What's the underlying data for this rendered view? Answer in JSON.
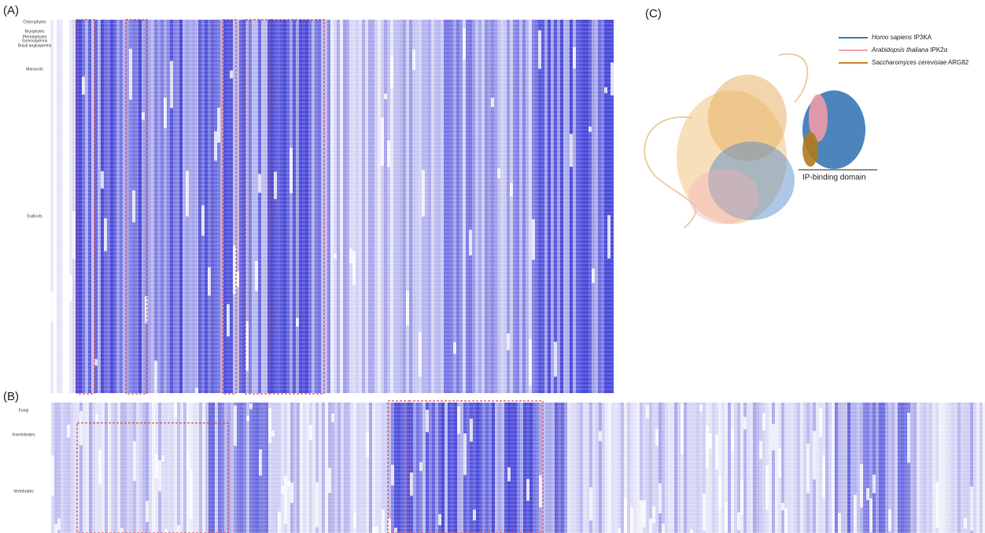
{
  "panels": {
    "a": {
      "label": "(A)",
      "groups": [
        "Chlorophytes",
        "Bryophytes",
        "Pteridophytes",
        "Gymnosperms",
        "Basal angiosperms",
        "Monocots",
        "Eudicots"
      ]
    },
    "b": {
      "label": "(B)",
      "groups": [
        "Fungi",
        "Invertebrates",
        "Vertebrates"
      ]
    },
    "c": {
      "label": "(C)",
      "legend": [
        {
          "species": "Homo sapiens",
          "protein": "IP3KA",
          "color": "#3b7fc4"
        },
        {
          "species": "Arabidopsis thaliana",
          "protein": "IPK2α",
          "color": "#f0a8b0"
        },
        {
          "species": "Saccharomyces cerevisiae",
          "protein": "ARG82",
          "color": "#c8862a"
        }
      ],
      "domain_label": "IP-binding domain"
    }
  }
}
